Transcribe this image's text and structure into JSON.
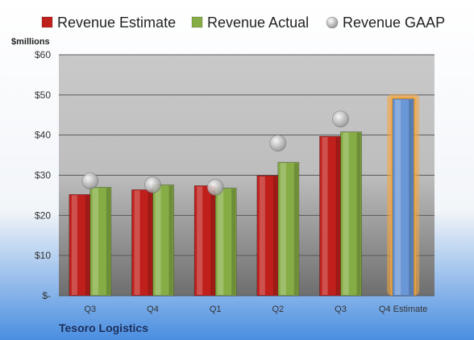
{
  "colors": {
    "estimate": "#c0201c",
    "actual": "#86ad45",
    "gaap": "#b8b8b8",
    "forecast": "#6a97d6",
    "forecast_glow": "#f5a53c",
    "background_top": "#ffffff",
    "background_bottom": "#4a8ee0"
  },
  "chart_data": {
    "type": "bar",
    "unit_label": "$millions",
    "categories": [
      "Q3",
      "Q4",
      "Q1",
      "Q2",
      "Q3",
      "Q4 Estimate"
    ],
    "series": [
      {
        "name": "Revenue Estimate",
        "marker": "bar",
        "values": [
          25.2,
          26.4,
          27.4,
          29.9,
          39.7,
          49.0
        ]
      },
      {
        "name": "Revenue Actual",
        "marker": "bar",
        "values": [
          27.0,
          27.6,
          26.8,
          33.2,
          40.8,
          null
        ]
      },
      {
        "name": "Revenue GAAP",
        "marker": "circle",
        "values": [
          28.6,
          27.6,
          27.0,
          38.0,
          44.0,
          null
        ]
      }
    ],
    "highlight_category": "Q4 Estimate",
    "ylim": [
      0,
      60
    ],
    "yticks": [
      0,
      10,
      20,
      30,
      40,
      50,
      60
    ],
    "ytick_labels": [
      "$-",
      "$10",
      "$20",
      "$30",
      "$40",
      "$50",
      "$60"
    ],
    "grid": true,
    "legend_position": "top",
    "footer_title": "Tesoro Logistics"
  }
}
